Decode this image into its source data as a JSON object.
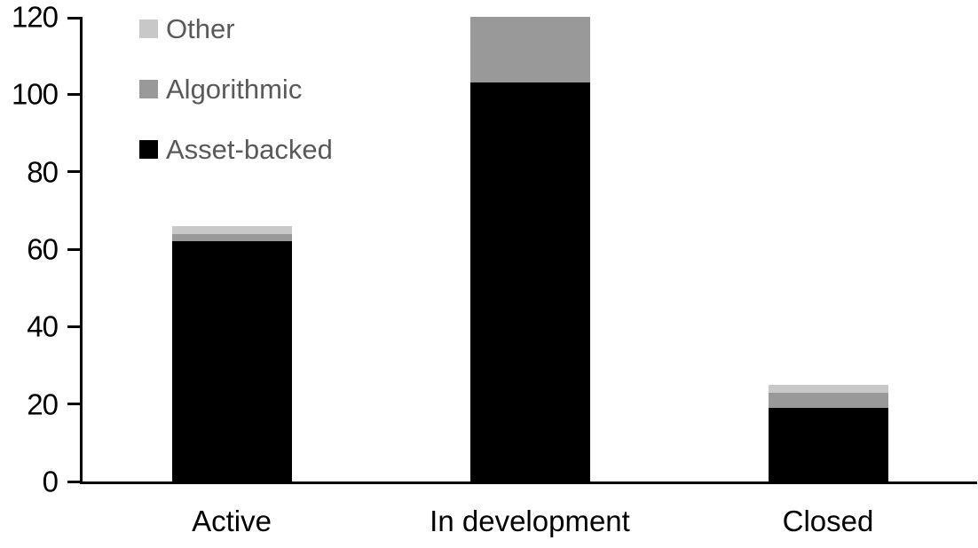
{
  "chart_data": {
    "type": "bar",
    "stacked": true,
    "title": "",
    "xlabel": "",
    "ylabel": "",
    "categories": [
      "Active",
      "In development",
      "Closed"
    ],
    "series": [
      {
        "name": "Asset-backed",
        "color": "#000000",
        "values": [
          62,
          103,
          19
        ]
      },
      {
        "name": "Algorithmic",
        "color": "#999999",
        "values": [
          2,
          17,
          4
        ]
      },
      {
        "name": "Other",
        "color": "#c8c8c8",
        "values": [
          2,
          0,
          2
        ]
      }
    ],
    "totals": [
      66,
      120,
      25
    ],
    "ylim": [
      0,
      120
    ],
    "yticks": [
      0,
      20,
      40,
      60,
      80,
      100,
      120
    ],
    "ytick_step": 20,
    "grid": false,
    "legend_position": "top-left",
    "legend": [
      {
        "label": "Other",
        "color": "#c8c8c8"
      },
      {
        "label": "Algorithmic",
        "color": "#999999"
      },
      {
        "label": "Asset-backed",
        "color": "#000000"
      }
    ],
    "axis_color": "#000000",
    "tick_label_color": "#000000",
    "legend_text_color": "#595959",
    "background_color": "#ffffff"
  }
}
